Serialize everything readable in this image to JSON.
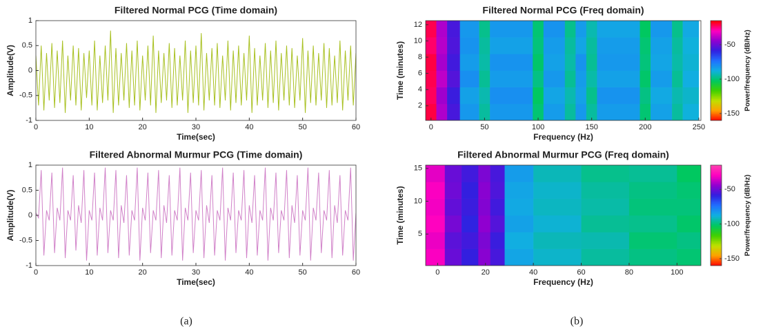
{
  "chart_data": [
    {
      "type": "line",
      "title": "Filtered Normal PCG (Time domain)",
      "xlabel": "Time(sec)",
      "ylabel": "Amplitude(V)",
      "xlim": [
        0,
        60
      ],
      "xticks": [
        0,
        10,
        20,
        30,
        40,
        50,
        60
      ],
      "ylim": [
        -1,
        1
      ],
      "yticks": [
        -1,
        -0.5,
        0,
        0.5,
        1
      ],
      "color": "#a8c020",
      "x": [
        0,
        0.5,
        1,
        1.5,
        2,
        2.5,
        3,
        3.5,
        4,
        4.5,
        5,
        5.5,
        6,
        6.5,
        7,
        7.5,
        8,
        8.5,
        9,
        9.5,
        10,
        10.5,
        11,
        11.5,
        12,
        12.5,
        13,
        13.5,
        14,
        14.5,
        15,
        15.5,
        16,
        16.5,
        17,
        17.5,
        18,
        18.5,
        19,
        19.5,
        20,
        20.5,
        21,
        21.5,
        22,
        22.5,
        23,
        23.5,
        24,
        24.5,
        25,
        25.5,
        26,
        26.5,
        27,
        27.5,
        28,
        28.5,
        29,
        29.5,
        30,
        30.5,
        31,
        31.5,
        32,
        32.5,
        33,
        33.5,
        34,
        34.5,
        35,
        35.5,
        36,
        36.5,
        37,
        37.5,
        38,
        38.5,
        39,
        39.5,
        40,
        40.5,
        41,
        41.5,
        42,
        42.5,
        43,
        43.5,
        44,
        44.5,
        45,
        45.5,
        46,
        46.5,
        47,
        47.5,
        48,
        48.5,
        49,
        49.5,
        50,
        50.5,
        51,
        51.5,
        52,
        52.5,
        53,
        53.5,
        54,
        54.5,
        55,
        55.5,
        56,
        56.5,
        57,
        57.5,
        58,
        58.5,
        59,
        59.5,
        60
      ],
      "values": [
        0.3,
        -0.7,
        0.5,
        -0.8,
        0.35,
        -0.6,
        0.55,
        -0.75,
        0.4,
        -0.65,
        0.6,
        -0.85,
        0.3,
        -0.6,
        0.5,
        -0.7,
        0.45,
        -0.8,
        0.35,
        -0.55,
        0.4,
        -0.7,
        0.6,
        -0.8,
        0.3,
        -0.65,
        0.5,
        -0.6,
        0.8,
        -0.85,
        0.45,
        -0.7,
        0.35,
        -0.6,
        0.55,
        -0.75,
        0.4,
        -0.7,
        0.6,
        -0.8,
        0.3,
        -0.6,
        0.5,
        -0.7,
        0.7,
        -0.85,
        0.4,
        -0.65,
        0.35,
        -0.6,
        0.55,
        -0.75,
        0.45,
        -0.7,
        0.3,
        -0.6,
        0.6,
        -0.85,
        0.4,
        -0.65,
        0.5,
        -0.7,
        0.75,
        -0.8,
        0.35,
        -0.6,
        0.45,
        -0.7,
        0.55,
        -0.75,
        0.3,
        -0.6,
        0.6,
        -0.8,
        0.4,
        -0.65,
        0.5,
        -0.7,
        0.35,
        -0.6,
        0.7,
        -0.85,
        0.45,
        -0.7,
        0.3,
        -0.6,
        0.55,
        -0.75,
        0.4,
        -0.65,
        0.6,
        -0.8,
        0.35,
        -0.6,
        0.5,
        -0.7,
        0.45,
        -0.75,
        0.3,
        -0.6,
        0.65,
        -0.85,
        0.4,
        -0.65,
        0.5,
        -0.7,
        0.35,
        -0.6,
        0.55,
        -0.75,
        0.45,
        -0.7,
        0.3,
        -0.65,
        0.6,
        -0.8,
        0.4,
        -0.6,
        0.5,
        -0.7,
        0.35
      ]
    },
    {
      "type": "line",
      "title": "Filtered Abnormal Murmur PCG (Time domain)",
      "xlabel": "Time(sec)",
      "ylabel": "Amplitude(V)",
      "xlim": [
        0,
        60
      ],
      "xticks": [
        0,
        10,
        20,
        30,
        40,
        50,
        60
      ],
      "ylim": [
        -1,
        1
      ],
      "yticks": [
        -1,
        -0.5,
        0,
        0.5,
        1
      ],
      "color": "#d080c8",
      "x": [
        0,
        0.5,
        1,
        1.5,
        2,
        2.5,
        3,
        3.5,
        4,
        4.5,
        5,
        5.5,
        6,
        6.5,
        7,
        7.5,
        8,
        8.5,
        9,
        9.5,
        10,
        10.5,
        11,
        11.5,
        12,
        12.5,
        13,
        13.5,
        14,
        14.5,
        15,
        15.5,
        16,
        16.5,
        17,
        17.5,
        18,
        18.5,
        19,
        19.5,
        20,
        20.5,
        21,
        21.5,
        22,
        22.5,
        23,
        23.5,
        24,
        24.5,
        25,
        25.5,
        26,
        26.5,
        27,
        27.5,
        28,
        28.5,
        29,
        29.5,
        30,
        30.5,
        31,
        31.5,
        32,
        32.5,
        33,
        33.5,
        34,
        34.5,
        35,
        35.5,
        36,
        36.5,
        37,
        37.5,
        38,
        38.5,
        39,
        39.5,
        40,
        40.5,
        41,
        41.5,
        42,
        42.5,
        43,
        43.5,
        44,
        44.5,
        45,
        45.5,
        46,
        46.5,
        47,
        47.5,
        48,
        48.5,
        49,
        49.5,
        50,
        50.5,
        51,
        51.5,
        52,
        52.5,
        53,
        53.5,
        54,
        54.5,
        55,
        55.5,
        56,
        56.5,
        57,
        57.5,
        58,
        58.5,
        59,
        59.5,
        60
      ],
      "values": [
        0.05,
        -0.05,
        0.9,
        -0.8,
        0.1,
        -0.1,
        0.85,
        -0.75,
        0.15,
        -0.1,
        0.95,
        -0.85,
        0.1,
        -0.1,
        0.8,
        -0.7,
        0.2,
        -0.15,
        0.9,
        -0.9,
        0.1,
        -0.1,
        0.85,
        -0.8,
        0.15,
        -0.1,
        0.95,
        -0.75,
        0.1,
        -0.1,
        0.9,
        -0.85,
        0.2,
        -0.15,
        0.8,
        -0.8,
        0.1,
        -0.1,
        0.95,
        -0.9,
        0.15,
        -0.1,
        0.85,
        -0.75,
        0.1,
        -0.1,
        0.9,
        -0.85,
        0.2,
        -0.15,
        0.8,
        -0.8,
        0.1,
        -0.1,
        0.95,
        -0.9,
        0.15,
        -0.1,
        0.85,
        -0.75,
        0.1,
        -0.1,
        0.9,
        -0.85,
        0.2,
        -0.15,
        0.8,
        -0.8,
        0.1,
        -0.1,
        0.95,
        -0.9,
        0.15,
        -0.1,
        0.85,
        -0.75,
        0.1,
        -0.1,
        0.9,
        -0.85,
        0.2,
        -0.15,
        0.8,
        -0.8,
        0.1,
        -0.1,
        0.95,
        -0.9,
        0.15,
        -0.1,
        0.85,
        -0.75,
        0.1,
        -0.1,
        0.9,
        -0.85,
        0.2,
        -0.15,
        0.8,
        -0.8,
        0.1,
        -0.1,
        0.95,
        -0.9,
        0.15,
        -0.1,
        0.85,
        -0.75,
        0.1,
        -0.1,
        0.9,
        -0.85,
        0.2,
        -0.15,
        0.8,
        -0.8,
        0.1,
        -0.1,
        0.95,
        -0.9,
        0.05
      ]
    },
    {
      "type": "heatmap",
      "title": "Filtered Normal PCG (Freq domain)",
      "xlabel": "Frequency (Hz)",
      "ylabel": "Time (minutes)",
      "xlim": [
        -5,
        252
      ],
      "xticks": [
        0,
        50,
        100,
        150,
        200,
        250
      ],
      "ylim": [
        0.2,
        12.5
      ],
      "yticks": [
        2,
        4,
        6,
        8,
        10,
        12
      ],
      "colorbar_label": "Power/frequency (dB/Hz)",
      "zlim": [
        -160,
        -15
      ],
      "zticks": [
        -50,
        -100,
        -150
      ],
      "colormap": [
        "#ff0000",
        "#ffa000",
        "#c0e000",
        "#40d000",
        "#00c860",
        "#10b0e0",
        "#2070ff",
        "#3020e0",
        "#9000d0",
        "#ff00c0",
        "#ff0000"
      ],
      "x_edges": [
        -5,
        5,
        15,
        27,
        45,
        55,
        95,
        105,
        125,
        135,
        145,
        155,
        195,
        205,
        225,
        235,
        250
      ],
      "y_edges": [
        0.2,
        2.25,
        4.3,
        6.35,
        8.4,
        10.45,
        12.5
      ],
      "z": [
        [
          -20,
          -40,
          -55,
          -82,
          -95,
          -82,
          -100,
          -83,
          -95,
          -82,
          -95,
          -83,
          -100,
          -84,
          -95,
          -88
        ],
        [
          -22,
          -42,
          -57,
          -84,
          -93,
          -80,
          -102,
          -85,
          -93,
          -84,
          -97,
          -81,
          -98,
          -86,
          -93,
          -90
        ],
        [
          -21,
          -38,
          -53,
          -80,
          -96,
          -83,
          -98,
          -82,
          -96,
          -83,
          -94,
          -84,
          -101,
          -83,
          -96,
          -87
        ],
        [
          -20,
          -41,
          -56,
          -83,
          -94,
          -81,
          -101,
          -84,
          -94,
          -81,
          -96,
          -82,
          -99,
          -85,
          -94,
          -89
        ],
        [
          -23,
          -39,
          -54,
          -81,
          -95,
          -84,
          -99,
          -83,
          -95,
          -85,
          -95,
          -83,
          -100,
          -84,
          -95,
          -88
        ],
        [
          -21,
          -40,
          -55,
          -82,
          -97,
          -82,
          -100,
          -81,
          -97,
          -83,
          -93,
          -85,
          -102,
          -82,
          -97,
          -86
        ]
      ]
    },
    {
      "type": "heatmap",
      "title": "Filtered Abnormal Murmur PCG (Freq domain)",
      "xlabel": "Frequency (Hz)",
      "ylabel": "Time (minutes)",
      "xlim": [
        -5,
        110
      ],
      "xticks": [
        0,
        20,
        40,
        60,
        80,
        100
      ],
      "ylim": [
        0.2,
        15.5
      ],
      "yticks": [
        5,
        10,
        15
      ],
      "colorbar_label": "Power/frequency (dB/Hz)",
      "zlim": [
        -160,
        -15
      ],
      "zticks": [
        -50,
        -100,
        -150
      ],
      "colormap": [
        "#ff0000",
        "#ffa000",
        "#c0e000",
        "#40d000",
        "#00c860",
        "#10b0e0",
        "#2070ff",
        "#3020e0",
        "#9000d0",
        "#ff00c0",
        "#ff40b0"
      ],
      "x_edges": [
        -5,
        3,
        10,
        17,
        22,
        28,
        40,
        60,
        80,
        100,
        110
      ],
      "y_edges": [
        0.2,
        2.75,
        5.3,
        7.85,
        10.4,
        12.95,
        15.5
      ],
      "z": [
        [
          -30,
          -50,
          -58,
          -45,
          -55,
          -85,
          -90,
          -95,
          -98,
          -100
        ],
        [
          -32,
          -52,
          -56,
          -47,
          -57,
          -87,
          -92,
          -93,
          -100,
          -98
        ],
        [
          -29,
          -48,
          -59,
          -44,
          -53,
          -84,
          -89,
          -96,
          -97,
          -101
        ],
        [
          -31,
          -51,
          -57,
          -46,
          -56,
          -86,
          -91,
          -94,
          -99,
          -99
        ],
        [
          -30,
          -49,
          -58,
          -45,
          -54,
          -85,
          -90,
          -95,
          -98,
          -100
        ],
        [
          -33,
          -50,
          -56,
          -47,
          -55,
          -83,
          -92,
          -97,
          -96,
          -102
        ]
      ]
    }
  ],
  "captions": [
    "(a)",
    "(b)"
  ]
}
